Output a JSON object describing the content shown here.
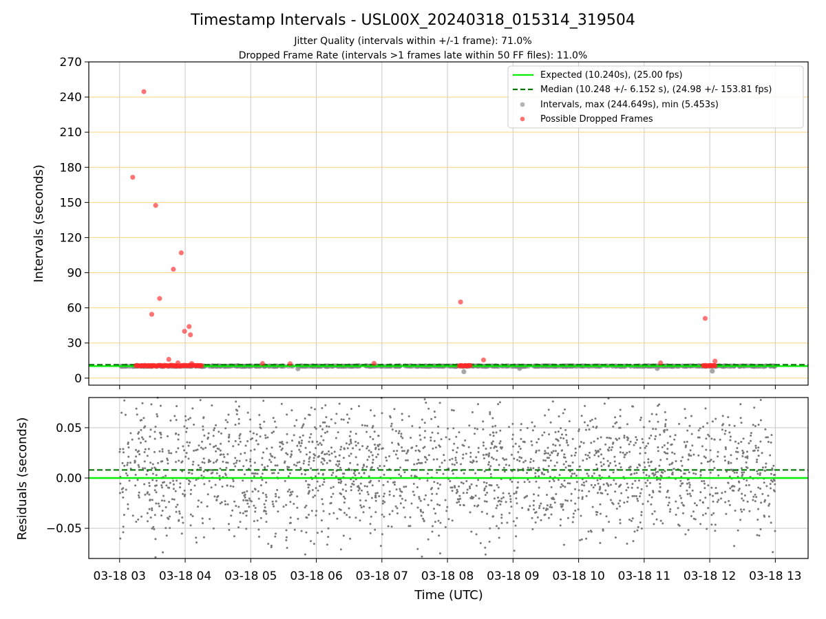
{
  "title": "Timestamp Intervals - USL00X_20240318_015314_319504",
  "subtitle_lines": [
    "Jitter Quality (intervals within +/-1 frame): 71.0%",
    "Dropped Frame Rate (intervals >1 frames late within 50 FF files): 11.0%"
  ],
  "colors": {
    "expected": "#00ee00",
    "median": "#007700",
    "intervals": "#808080",
    "dropped": "#ff2a2a",
    "ygrid_top": "#ffd27a",
    "grid": "#c8c8c8"
  },
  "chart_data": [
    {
      "type": "scatter",
      "name": "intervals-panel",
      "xlabel": "",
      "ylabel": "Intervals (seconds)",
      "x_unit": "hour UTC, 2024-03-18",
      "xlim": [
        2.53,
        13.5
      ],
      "ylim": [
        -6,
        270
      ],
      "yticks": [
        0,
        30,
        60,
        90,
        120,
        150,
        180,
        210,
        240,
        270
      ],
      "xticks": [
        3,
        4,
        5,
        6,
        7,
        8,
        9,
        10,
        11,
        12,
        13
      ],
      "x_tick_labels": [
        "03-18 03",
        "03-18 04",
        "03-18 05",
        "03-18 06",
        "03-18 07",
        "03-18 08",
        "03-18 09",
        "03-18 10",
        "03-18 11",
        "03-18 12",
        "03-18 13"
      ],
      "grid": "horizontal gridlines orange, vertical gridlines gray",
      "legend_position": "top-right",
      "legend": [
        "Expected (10.240s), (25.00 fps)",
        "Median (10.248 +/- 6.152 s), (24.98 +/- 153.81 fps)",
        "Intervals, max (244.649s), min (5.453s)",
        "Possible Dropped Frames"
      ],
      "expected_interval": 10.24,
      "median_interval": 10.248,
      "interval_range": [
        3.0,
        13.0
      ],
      "dropped_frames": [
        {
          "x": 3.2,
          "y": 171.5
        },
        {
          "x": 3.37,
          "y": 244.6
        },
        {
          "x": 3.55,
          "y": 147.5
        },
        {
          "x": 3.49,
          "y": 54.5
        },
        {
          "x": 3.61,
          "y": 68.0
        },
        {
          "x": 3.75,
          "y": 16.0
        },
        {
          "x": 3.82,
          "y": 93.0
        },
        {
          "x": 3.89,
          "y": 13.0
        },
        {
          "x": 3.94,
          "y": 107.0
        },
        {
          "x": 3.99,
          "y": 40.0
        },
        {
          "x": 4.06,
          "y": 44.0
        },
        {
          "x": 4.08,
          "y": 37.0
        },
        {
          "x": 4.1,
          "y": 12.5
        },
        {
          "x": 5.18,
          "y": 12.5
        },
        {
          "x": 5.6,
          "y": 12.3
        },
        {
          "x": 6.88,
          "y": 12.6
        },
        {
          "x": 8.2,
          "y": 65.0
        },
        {
          "x": 8.55,
          "y": 15.5
        },
        {
          "x": 11.25,
          "y": 13.0
        },
        {
          "x": 11.93,
          "y": 51.0
        },
        {
          "x": 12.08,
          "y": 14.5
        }
      ],
      "dropped_frame_clusters": [
        {
          "from": 3.25,
          "to": 4.25,
          "y": 10.6
        },
        {
          "from": 8.18,
          "to": 8.35,
          "y": 10.6
        },
        {
          "from": 11.9,
          "to": 12.08,
          "y": 10.6
        }
      ]
    },
    {
      "type": "scatter",
      "name": "residuals-panel",
      "xlabel": "Time (UTC)",
      "ylabel": "Residuals (seconds)",
      "xlim": [
        2.53,
        13.5
      ],
      "ylim": [
        -0.08,
        0.08
      ],
      "yticks": [
        0.05,
        0.0,
        -0.05
      ],
      "ytick_labels": [
        "0.05",
        "0.00",
        "−0.05"
      ],
      "expected_residual": 0.0,
      "median_residual": 0.008,
      "residual_range": [
        -0.08,
        0.08
      ],
      "grid": "both axes, gray",
      "point_color": "#777777"
    }
  ]
}
